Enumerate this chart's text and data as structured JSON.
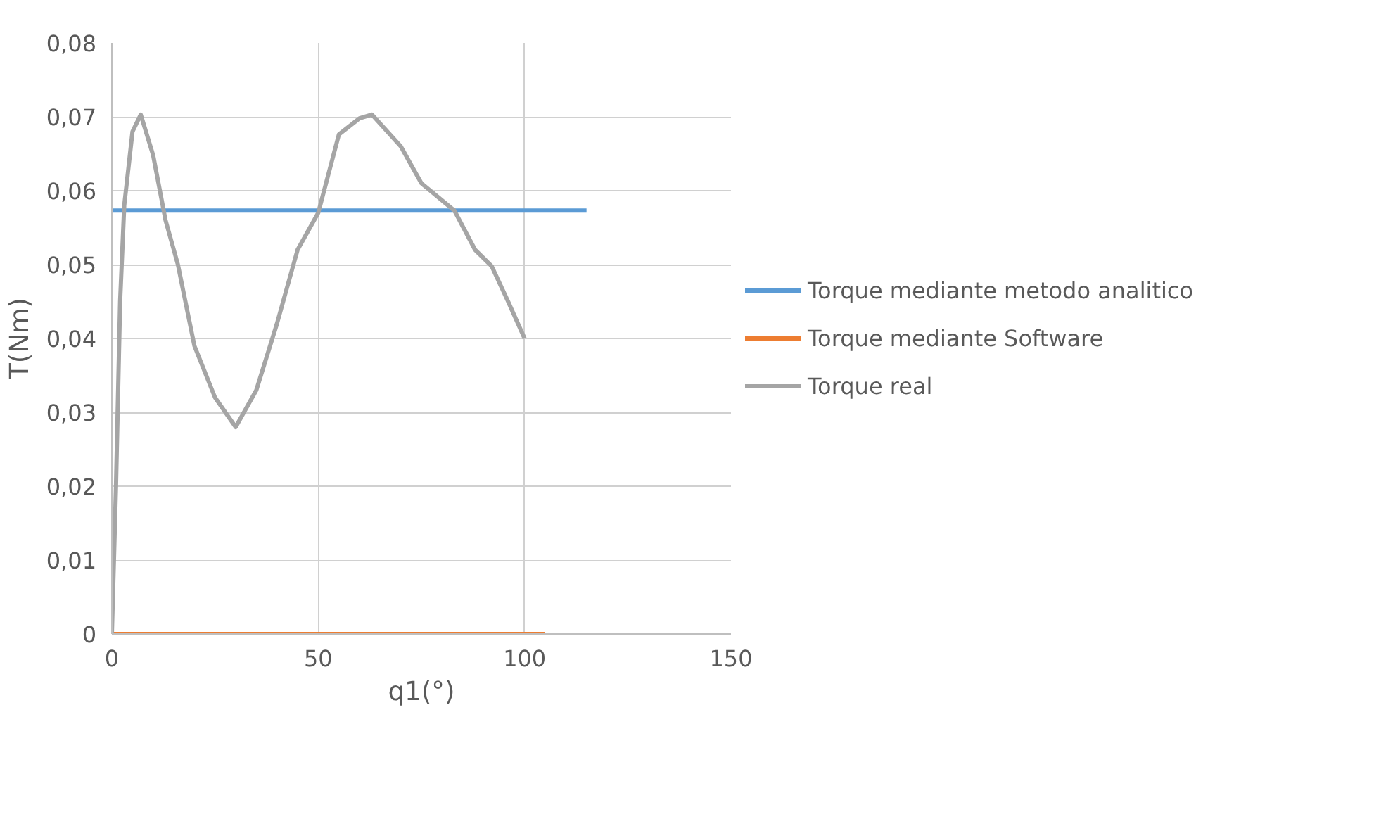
{
  "chart_data": {
    "type": "line",
    "xlabel": "q1(°)",
    "ylabel": "T(Nm)",
    "series": [
      {
        "name": "Torque mediante metodo analitico",
        "color": "#5b9bd5",
        "x": [
          0,
          115
        ],
        "values": [
          0.0573,
          0.0573
        ]
      },
      {
        "name": "Torque mediante Software",
        "color": "#ed7d31",
        "x": [
          0,
          105
        ],
        "values": [
          0,
          0
        ]
      },
      {
        "name": "Torque real",
        "color": "#a5a5a5",
        "x": [
          0,
          1,
          2,
          3,
          5,
          7,
          10,
          13,
          16,
          20,
          25,
          30,
          35,
          40,
          45,
          50,
          55,
          60,
          63,
          70,
          75,
          83,
          88,
          92,
          96,
          100
        ],
        "values": [
          0,
          0.02,
          0.045,
          0.058,
          0.068,
          0.0703,
          0.0648,
          0.056,
          0.05,
          0.039,
          0.032,
          0.028,
          0.033,
          0.042,
          0.052,
          0.057,
          0.0676,
          0.0698,
          0.0703,
          0.066,
          0.061,
          0.0573,
          0.052,
          0.0498,
          0.045,
          0.04
        ]
      }
    ],
    "xlim": [
      0,
      150
    ],
    "xticks": [
      0,
      50,
      100,
      150
    ],
    "ylim": [
      0,
      0.08
    ],
    "yticks": [
      {
        "value": 0,
        "label": "0"
      },
      {
        "value": 0.01,
        "label": "0,01"
      },
      {
        "value": 0.02,
        "label": "0,02"
      },
      {
        "value": 0.03,
        "label": "0,03"
      },
      {
        "value": 0.04,
        "label": "0,04"
      },
      {
        "value": 0.05,
        "label": "0,05"
      },
      {
        "value": 0.06,
        "label": "0,06"
      },
      {
        "value": 0.07,
        "label": "0,07"
      },
      {
        "value": 0.08,
        "label": "0,08"
      }
    ],
    "grid": true,
    "legend": "right",
    "marker": "none",
    "line_style": "solid"
  }
}
